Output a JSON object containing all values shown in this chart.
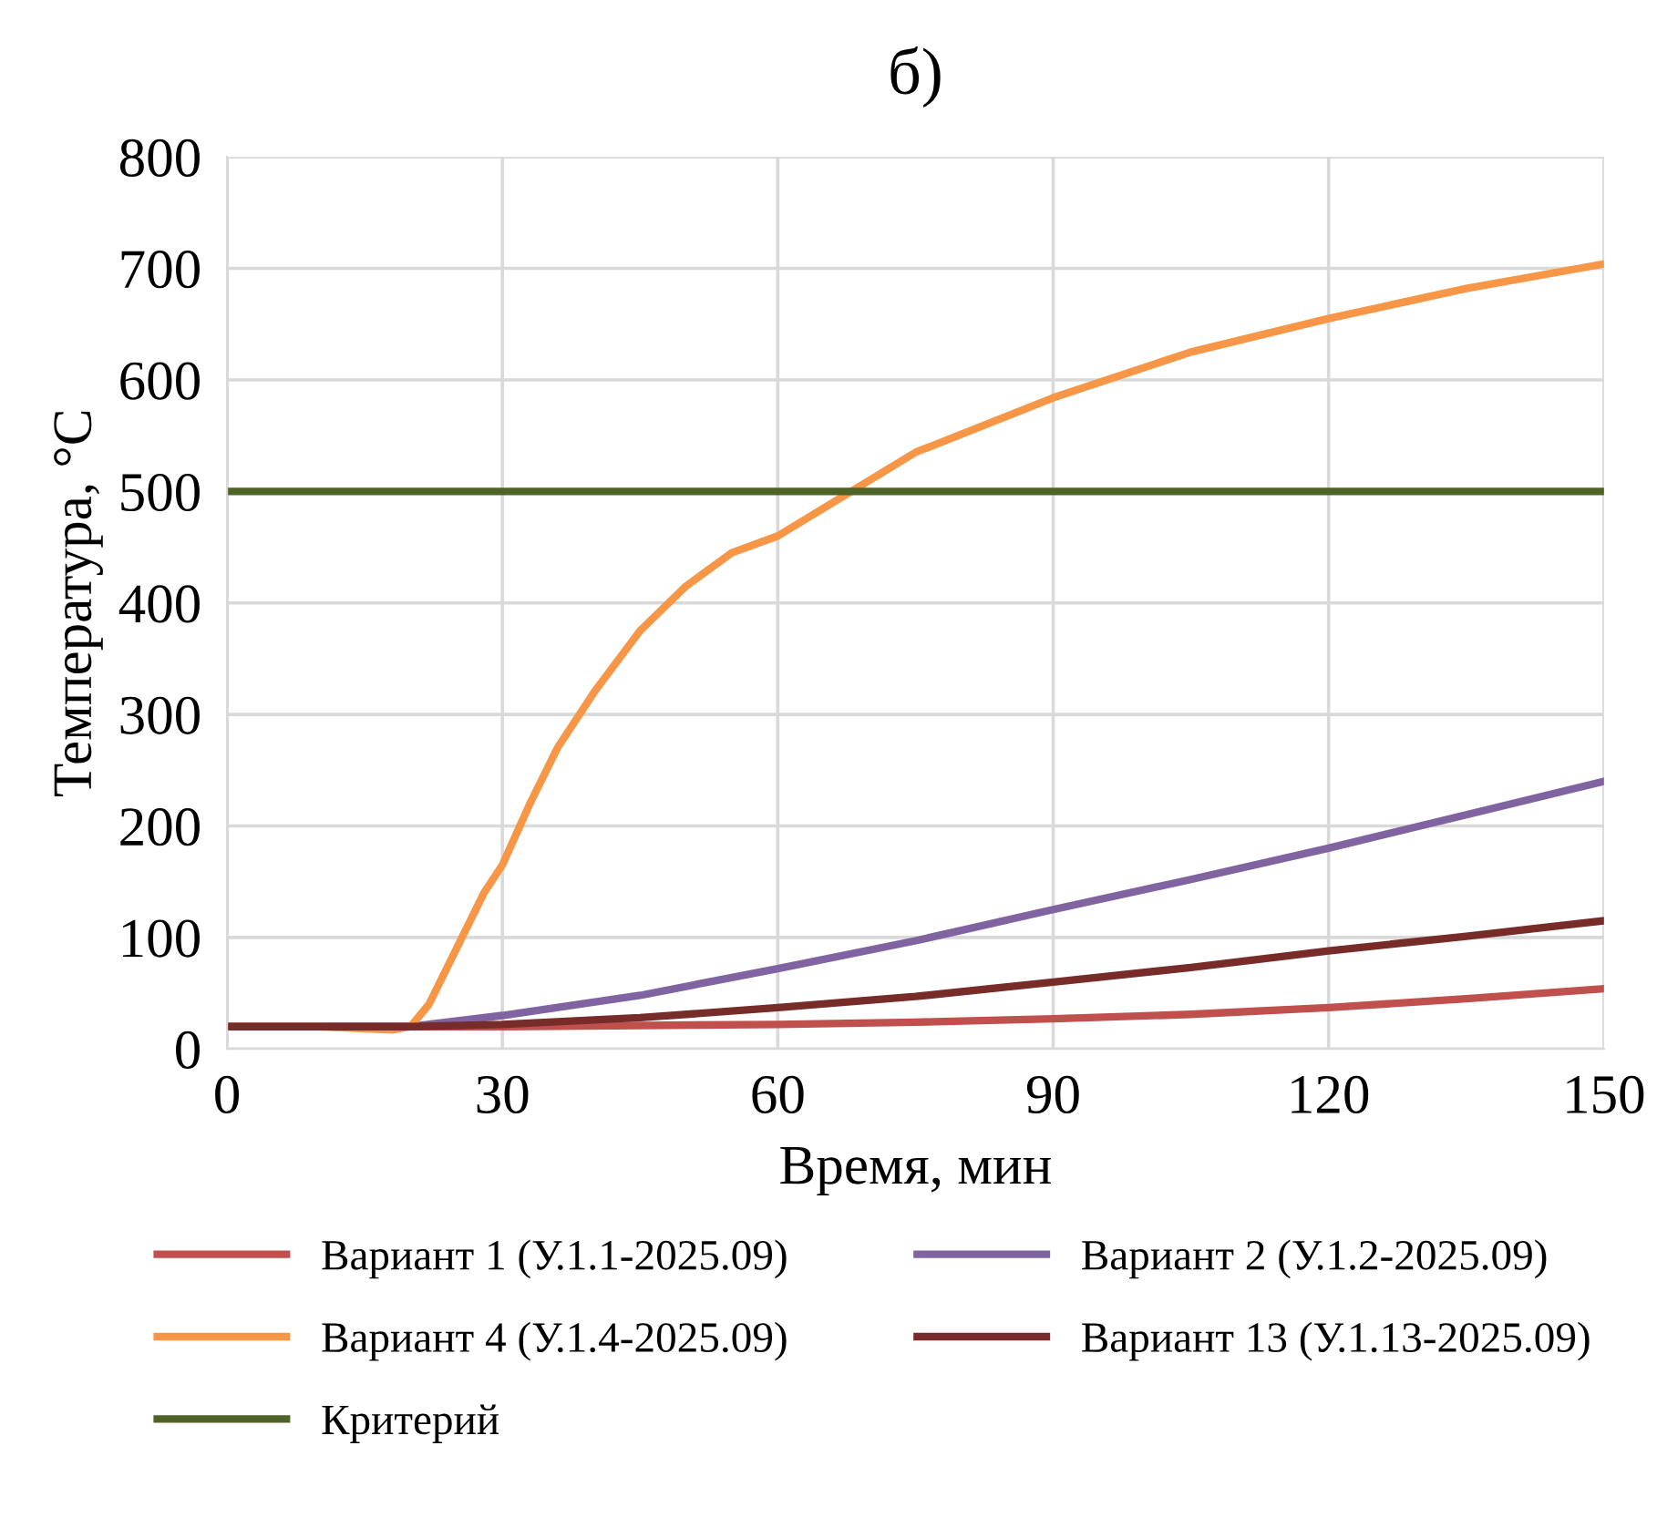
{
  "chart_data": {
    "type": "line",
    "title": "б)",
    "xlabel": "Время, мин",
    "ylabel": "Температура, °С",
    "xlim": [
      0,
      150
    ],
    "xticks": [
      0,
      30,
      60,
      90,
      120,
      150
    ],
    "ylim": [
      0,
      800
    ],
    "yticks": [
      0,
      100,
      200,
      300,
      400,
      500,
      600,
      700,
      800
    ],
    "grid": true,
    "legend": "bottom",
    "marker": "none",
    "line_style": "solid",
    "series": [
      {
        "name": "Вариант 1 (У.1.1-2025.09)",
        "color": "#c0504d",
        "x": [
          0,
          20,
          30,
          45,
          60,
          75,
          90,
          105,
          120,
          135,
          150
        ],
        "values": [
          20,
          20,
          20,
          21,
          22,
          24,
          27,
          31,
          37,
          45,
          54
        ]
      },
      {
        "name": "Вариант 2 (У.1.2-2025.09)",
        "color": "#8064a2",
        "x": [
          0,
          20,
          30,
          45,
          60,
          75,
          90,
          105,
          120,
          135,
          150
        ],
        "values": [
          20,
          20,
          30,
          48,
          72,
          97,
          125,
          152,
          180,
          210,
          240
        ]
      },
      {
        "name": "Вариант 4 (У.1.4-2025.09)",
        "color": "#f79646",
        "x": [
          0,
          10,
          18,
          20,
          22,
          25,
          28,
          30,
          33,
          36,
          40,
          45,
          50,
          55,
          60,
          68,
          75,
          90,
          105,
          120,
          135,
          150
        ],
        "values": [
          20,
          20,
          17,
          20,
          40,
          90,
          140,
          165,
          220,
          270,
          320,
          375,
          415,
          445,
          460,
          500,
          535,
          584,
          625,
          655,
          682,
          704
        ]
      },
      {
        "name": "Вариант 13 (У.1.13-2025.09)",
        "color": "#772c2a",
        "x": [
          0,
          20,
          30,
          45,
          60,
          75,
          90,
          105,
          120,
          135,
          150
        ],
        "values": [
          20,
          20,
          22,
          28,
          37,
          47,
          60,
          73,
          88,
          101,
          115
        ]
      },
      {
        "name": "Критерий",
        "color": "#4f6228",
        "x": [
          0,
          150
        ],
        "values": [
          500,
          500
        ]
      }
    ]
  }
}
